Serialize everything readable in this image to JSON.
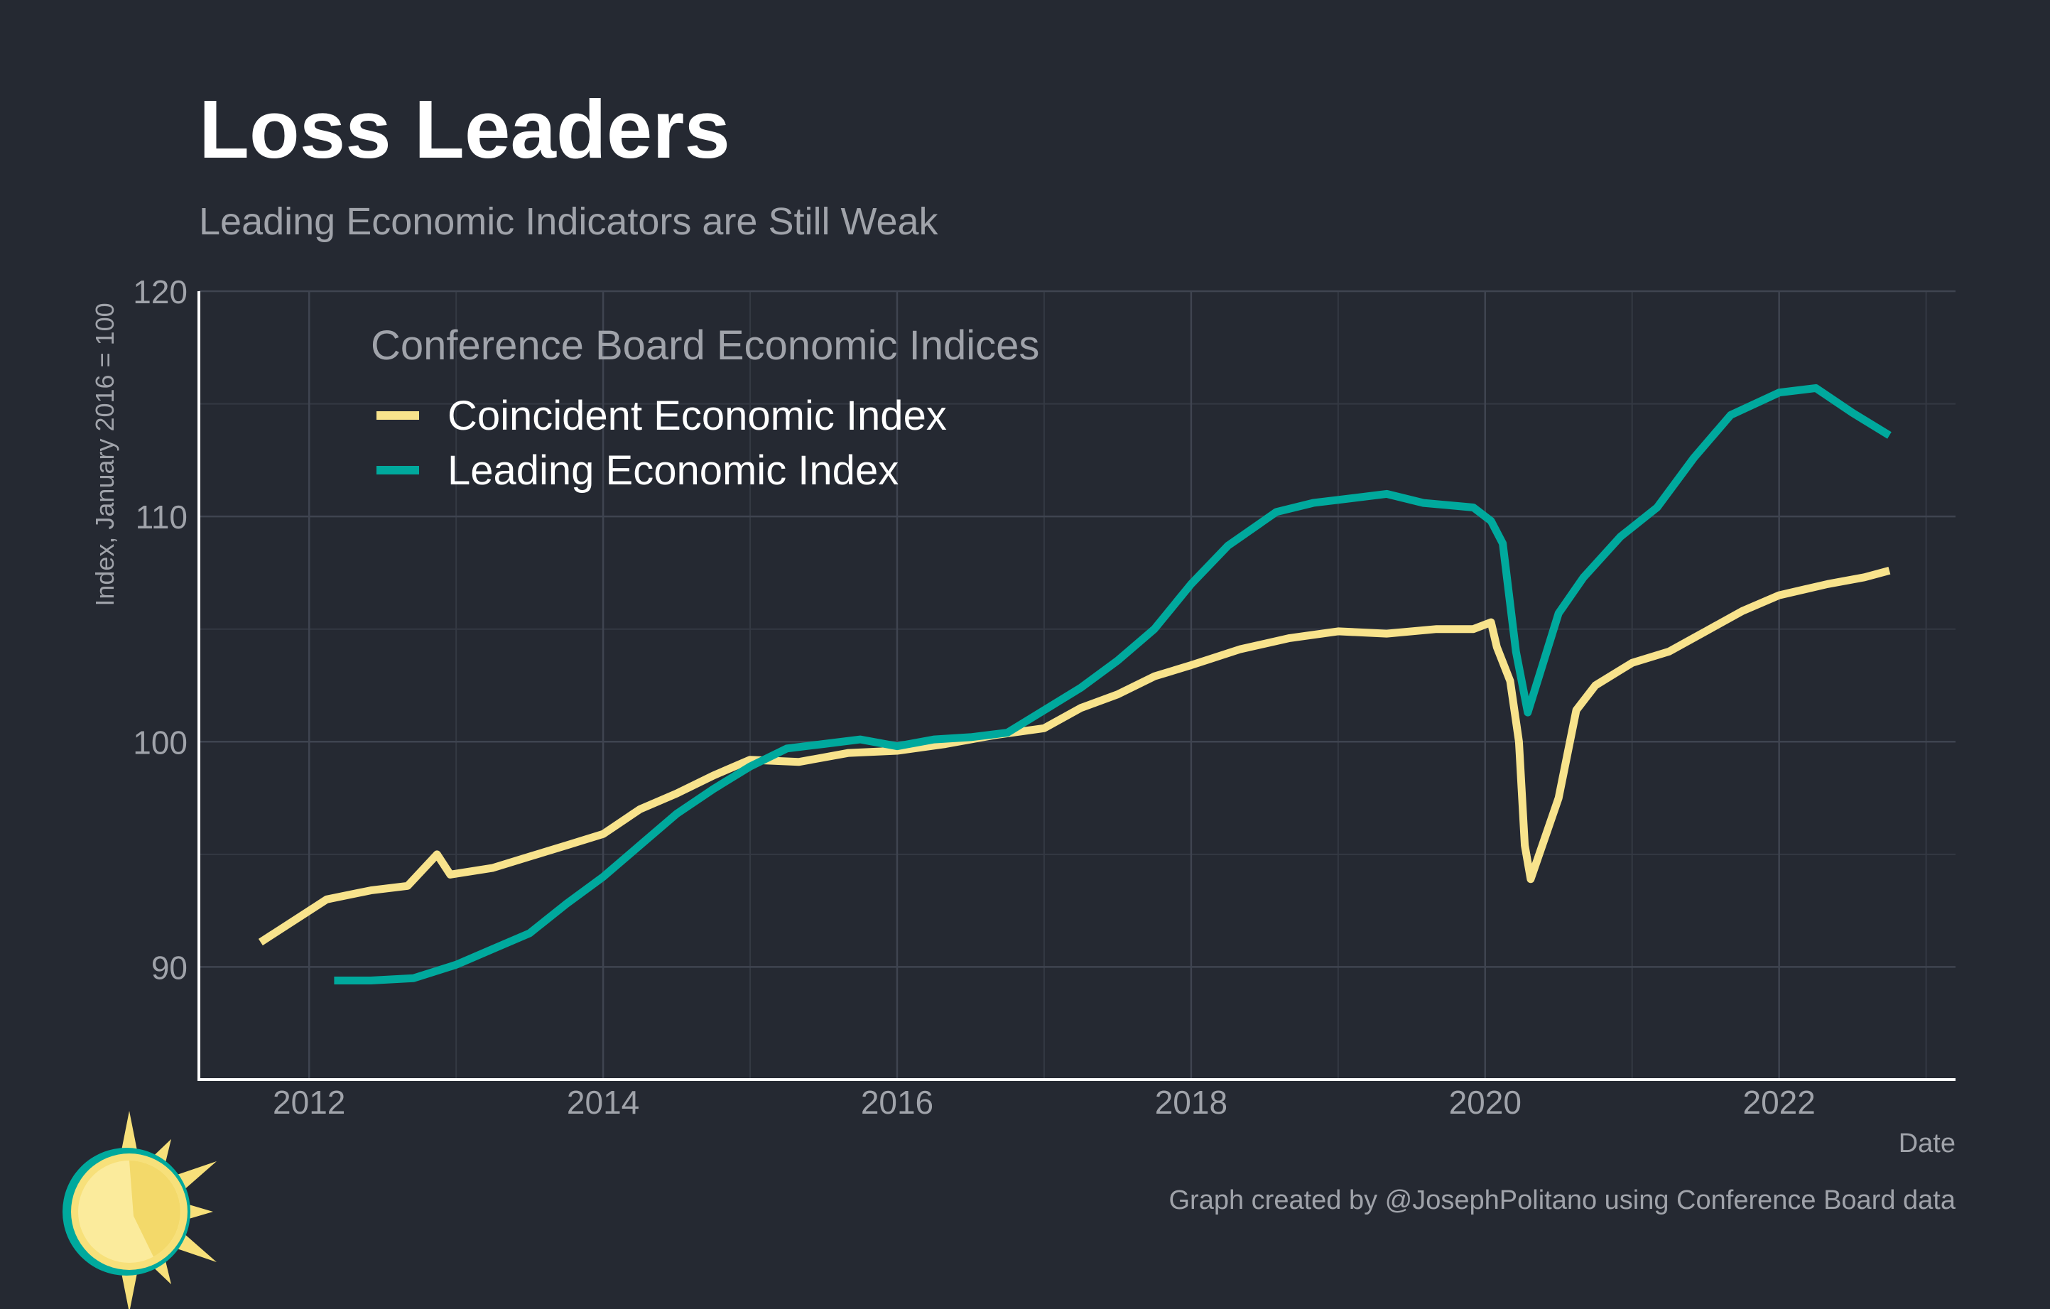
{
  "title": "Loss Leaders",
  "subtitle": "Leading Economic Indicators are Still Weak",
  "caption": "Graph created by @JosephPolitano using Conference Board data",
  "logo": {
    "icon": "sun-logo-icon",
    "colors": {
      "ring": "#00A99D",
      "sun": "#F7E07A",
      "rays": "#F7E07A"
    }
  },
  "colors": {
    "background": "#252932",
    "grid": "#3F4450",
    "axis": "#FFFFFF",
    "title": "#FFFFFF",
    "muted": "#A0A3AA"
  },
  "chart_data": {
    "type": "line",
    "title": "Loss Leaders",
    "subtitle": "Leading Economic Indicators are Still Weak",
    "xlabel": "Date",
    "ylabel": "Index, January 2016 = 100",
    "xlim": [
      2011.25,
      2023.2
    ],
    "ylim": [
      85,
      120
    ],
    "x_ticks": [
      2012,
      2014,
      2016,
      2018,
      2020,
      2022
    ],
    "y_ticks": [
      90,
      100,
      110,
      120
    ],
    "grid": true,
    "legend": {
      "title": "Conference Board Economic Indices",
      "placement": "top-left"
    },
    "series": [
      {
        "name": "Coincident Economic Index",
        "color": "#F8E38C",
        "points": [
          [
            2011.67,
            91.1
          ],
          [
            2012.12,
            93.0
          ],
          [
            2012.42,
            93.4
          ],
          [
            2012.67,
            93.6
          ],
          [
            2012.87,
            95.0
          ],
          [
            2012.96,
            94.1
          ],
          [
            2013.25,
            94.4
          ],
          [
            2013.5,
            94.9
          ],
          [
            2013.75,
            95.4
          ],
          [
            2014.0,
            95.9
          ],
          [
            2014.25,
            97.0
          ],
          [
            2014.5,
            97.7
          ],
          [
            2014.75,
            98.5
          ],
          [
            2015.0,
            99.2
          ],
          [
            2015.33,
            99.1
          ],
          [
            2015.67,
            99.5
          ],
          [
            2016.0,
            99.6
          ],
          [
            2016.33,
            99.9
          ],
          [
            2016.67,
            100.3
          ],
          [
            2017.0,
            100.6
          ],
          [
            2017.25,
            101.5
          ],
          [
            2017.5,
            102.1
          ],
          [
            2017.75,
            102.9
          ],
          [
            2018.0,
            103.4
          ],
          [
            2018.33,
            104.1
          ],
          [
            2018.67,
            104.6
          ],
          [
            2019.0,
            104.9
          ],
          [
            2019.33,
            104.8
          ],
          [
            2019.67,
            105.0
          ],
          [
            2019.92,
            105.0
          ],
          [
            2020.04,
            105.3
          ],
          [
            2020.08,
            104.2
          ],
          [
            2020.17,
            102.7
          ],
          [
            2020.23,
            100.0
          ],
          [
            2020.27,
            95.4
          ],
          [
            2020.31,
            93.9
          ],
          [
            2020.5,
            97.5
          ],
          [
            2020.62,
            101.4
          ],
          [
            2020.75,
            102.5
          ],
          [
            2021.0,
            103.5
          ],
          [
            2021.25,
            104.0
          ],
          [
            2021.5,
            104.9
          ],
          [
            2021.75,
            105.8
          ],
          [
            2022.0,
            106.5
          ],
          [
            2022.33,
            107.0
          ],
          [
            2022.58,
            107.3
          ],
          [
            2022.75,
            107.6
          ]
        ]
      },
      {
        "name": "Leading Economic Index",
        "color": "#00A99D",
        "points": [
          [
            2012.17,
            89.4
          ],
          [
            2012.42,
            89.4
          ],
          [
            2012.71,
            89.5
          ],
          [
            2013.0,
            90.1
          ],
          [
            2013.25,
            90.8
          ],
          [
            2013.5,
            91.5
          ],
          [
            2013.75,
            92.8
          ],
          [
            2014.0,
            94.0
          ],
          [
            2014.25,
            95.4
          ],
          [
            2014.5,
            96.8
          ],
          [
            2014.75,
            97.9
          ],
          [
            2015.0,
            98.9
          ],
          [
            2015.25,
            99.7
          ],
          [
            2015.5,
            99.9
          ],
          [
            2015.75,
            100.1
          ],
          [
            2016.0,
            99.8
          ],
          [
            2016.25,
            100.1
          ],
          [
            2016.5,
            100.2
          ],
          [
            2016.75,
            100.4
          ],
          [
            2017.0,
            101.4
          ],
          [
            2017.25,
            102.4
          ],
          [
            2017.5,
            103.6
          ],
          [
            2017.75,
            105.0
          ],
          [
            2018.0,
            107.0
          ],
          [
            2018.25,
            108.7
          ],
          [
            2018.58,
            110.2
          ],
          [
            2018.83,
            110.6
          ],
          [
            2019.08,
            110.8
          ],
          [
            2019.33,
            111.0
          ],
          [
            2019.58,
            110.6
          ],
          [
            2019.92,
            110.4
          ],
          [
            2020.04,
            109.8
          ],
          [
            2020.12,
            108.8
          ],
          [
            2020.21,
            104.0
          ],
          [
            2020.29,
            101.3
          ],
          [
            2020.5,
            105.7
          ],
          [
            2020.67,
            107.3
          ],
          [
            2020.92,
            109.1
          ],
          [
            2021.17,
            110.4
          ],
          [
            2021.42,
            112.6
          ],
          [
            2021.67,
            114.5
          ],
          [
            2022.0,
            115.5
          ],
          [
            2022.25,
            115.7
          ],
          [
            2022.5,
            114.6
          ],
          [
            2022.75,
            113.6
          ]
        ]
      }
    ]
  }
}
